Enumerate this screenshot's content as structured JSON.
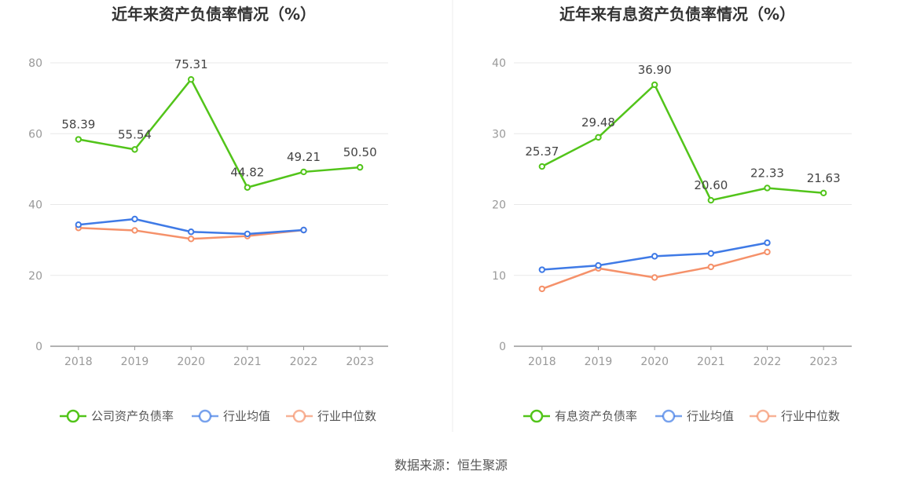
{
  "source_text": "数据来源：恒生聚源",
  "chart_data": [
    {
      "type": "line",
      "title": "近年来资产负债率情况（%）",
      "categories": [
        "2018",
        "2019",
        "2020",
        "2021",
        "2022",
        "2023"
      ],
      "yticks": [
        "0",
        "20",
        "40",
        "60",
        "80"
      ],
      "ylim": [
        0,
        80
      ],
      "grid": true,
      "legend_position": "bottom",
      "series": [
        {
          "name": "公司资产负债率",
          "color": "#52c41a",
          "values": [
            58.39,
            55.54,
            75.31,
            44.82,
            49.21,
            50.5
          ],
          "labels": [
            "58.39",
            "55.54",
            "75.31",
            "44.82",
            "49.21",
            "50.50"
          ]
        },
        {
          "name": "行业均值",
          "color": "#3f7ae6",
          "values": [
            34.3,
            35.9,
            32.3,
            31.7,
            32.8,
            null
          ]
        },
        {
          "name": "行业中位数",
          "color": "#f5916a",
          "values": [
            33.4,
            32.7,
            30.3,
            31.1,
            32.8,
            null
          ]
        }
      ]
    },
    {
      "type": "line",
      "title": "近年来有息资产负债率情况（%）",
      "categories": [
        "2018",
        "2019",
        "2020",
        "2021",
        "2022",
        "2023"
      ],
      "yticks": [
        "0",
        "10",
        "20",
        "30",
        "40"
      ],
      "ylim": [
        0,
        40
      ],
      "grid": true,
      "legend_position": "bottom",
      "series": [
        {
          "name": "有息资产负债率",
          "color": "#52c41a",
          "values": [
            25.37,
            29.48,
            36.9,
            20.6,
            22.33,
            21.63
          ],
          "labels": [
            "25.37",
            "29.48",
            "36.90",
            "20.60",
            "22.33",
            "21.63"
          ]
        },
        {
          "name": "行业均值",
          "color": "#3f7ae6",
          "values": [
            10.8,
            11.4,
            12.7,
            13.1,
            14.6,
            null
          ]
        },
        {
          "name": "行业中位数",
          "color": "#f5916a",
          "values": [
            8.1,
            11.0,
            9.7,
            11.2,
            13.3,
            null
          ]
        }
      ]
    }
  ]
}
